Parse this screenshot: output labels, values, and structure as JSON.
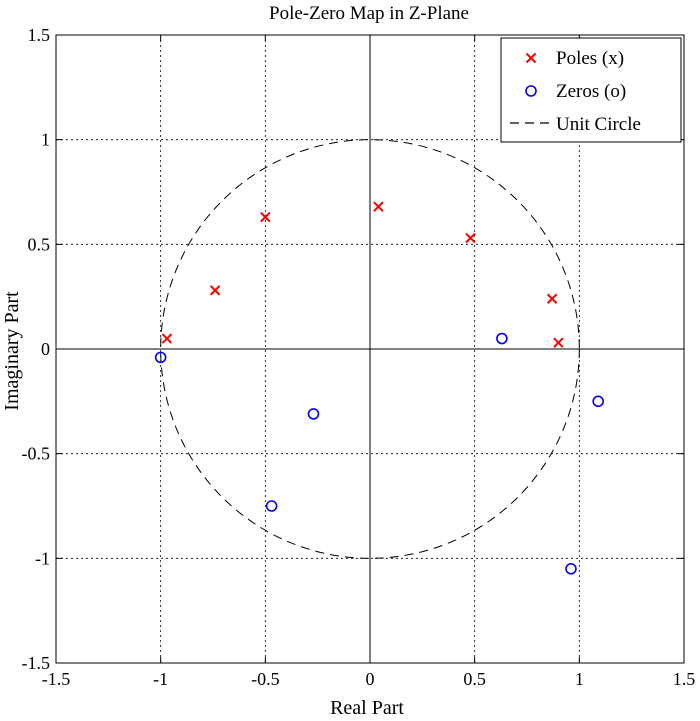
{
  "chart_data": {
    "type": "scatter",
    "title": "Pole-Zero Map in Z-Plane",
    "xlabel": "Real Part",
    "ylabel": "Imaginary Part",
    "xlim": [
      -1.5,
      1.5
    ],
    "ylim": [
      -1.5,
      1.5
    ],
    "xticks": [
      "-1.5",
      "-1",
      "-0.5",
      "0",
      "0.5",
      "1",
      "1.5"
    ],
    "yticks": [
      "1.5",
      "1",
      "0.5",
      "0",
      "-0.5",
      "-1",
      "-1.5"
    ],
    "grid": true,
    "legend_position": "top-right",
    "legend": [
      "Poles (x)",
      "Zeros (o)",
      "Unit Circle"
    ],
    "colors": {
      "poles": "#ff0000",
      "zeros": "#0000ff",
      "circle": "#000000"
    },
    "series": [
      {
        "name": "Poles (x)",
        "marker": "x",
        "points": [
          [
            -0.97,
            0.05
          ],
          [
            -0.74,
            0.28
          ],
          [
            -0.5,
            0.63
          ],
          [
            0.04,
            0.68
          ],
          [
            0.48,
            0.53
          ],
          [
            0.87,
            0.24
          ],
          [
            0.9,
            0.03
          ]
        ]
      },
      {
        "name": "Zeros (o)",
        "marker": "o",
        "points": [
          [
            -1.0,
            -0.04
          ],
          [
            -0.27,
            -0.31
          ],
          [
            -0.47,
            -0.75
          ],
          [
            0.63,
            0.05
          ],
          [
            1.09,
            -0.25
          ],
          [
            0.96,
            -1.05
          ]
        ]
      },
      {
        "name": "Unit Circle",
        "type": "circle",
        "radius": 1
      }
    ]
  }
}
